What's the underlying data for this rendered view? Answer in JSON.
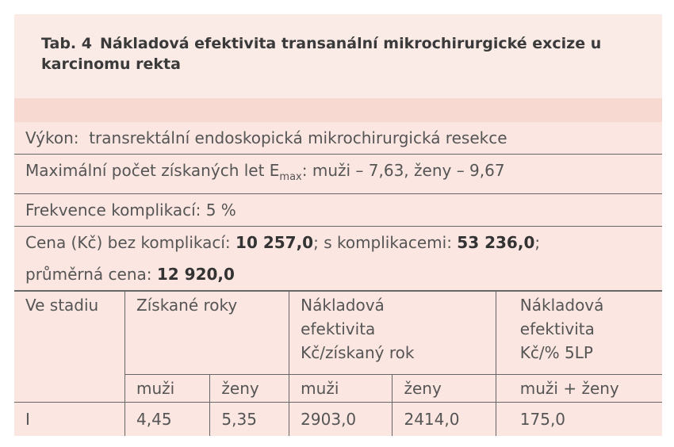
{
  "title": {
    "label": "Tab. 4",
    "text": "Nákladová efektivita transanální mikrochirurgické excize u karcinomu rekta"
  },
  "info": [
    [
      {
        "text": "Výkon:  transrektální endoskopická mikrochirurgická resekce"
      }
    ],
    [
      {
        "text": "Maximální počet získaných let E"
      },
      {
        "text": "max",
        "sub": true
      },
      {
        "text": ": muži – 7,63, ženy – 9,67"
      }
    ],
    [
      {
        "text": "Frekvence komplikací: 5 %"
      }
    ],
    [
      {
        "text": "Cena (Kč) bez komplikací: "
      },
      {
        "text": "10 257,0",
        "bold": true
      },
      {
        "text": "; s komplikacemi: "
      },
      {
        "text": "53 236,0",
        "bold": true
      },
      {
        "text": ";"
      }
    ],
    [
      {
        "text": "průměrná cena: "
      },
      {
        "text": "12 920,0",
        "bold": true
      }
    ]
  ],
  "table": {
    "header": [
      {
        "text": "Ve stadiu",
        "span": 1
      },
      {
        "text": "Získané roky",
        "span": 2
      },
      {
        "text": "Nákladová efektivita Kč/získaný rok",
        "span": 2
      },
      {
        "text": "Nákladová efektivita Kč/% 5LP",
        "span": 1
      }
    ],
    "subheader": [
      "muži",
      "ženy",
      "muži",
      "ženy",
      "muži + ženy"
    ],
    "rows": [
      [
        "I",
        "4,45",
        "5,35",
        "2903,0",
        "2414,0",
        "175,0"
      ]
    ]
  }
}
